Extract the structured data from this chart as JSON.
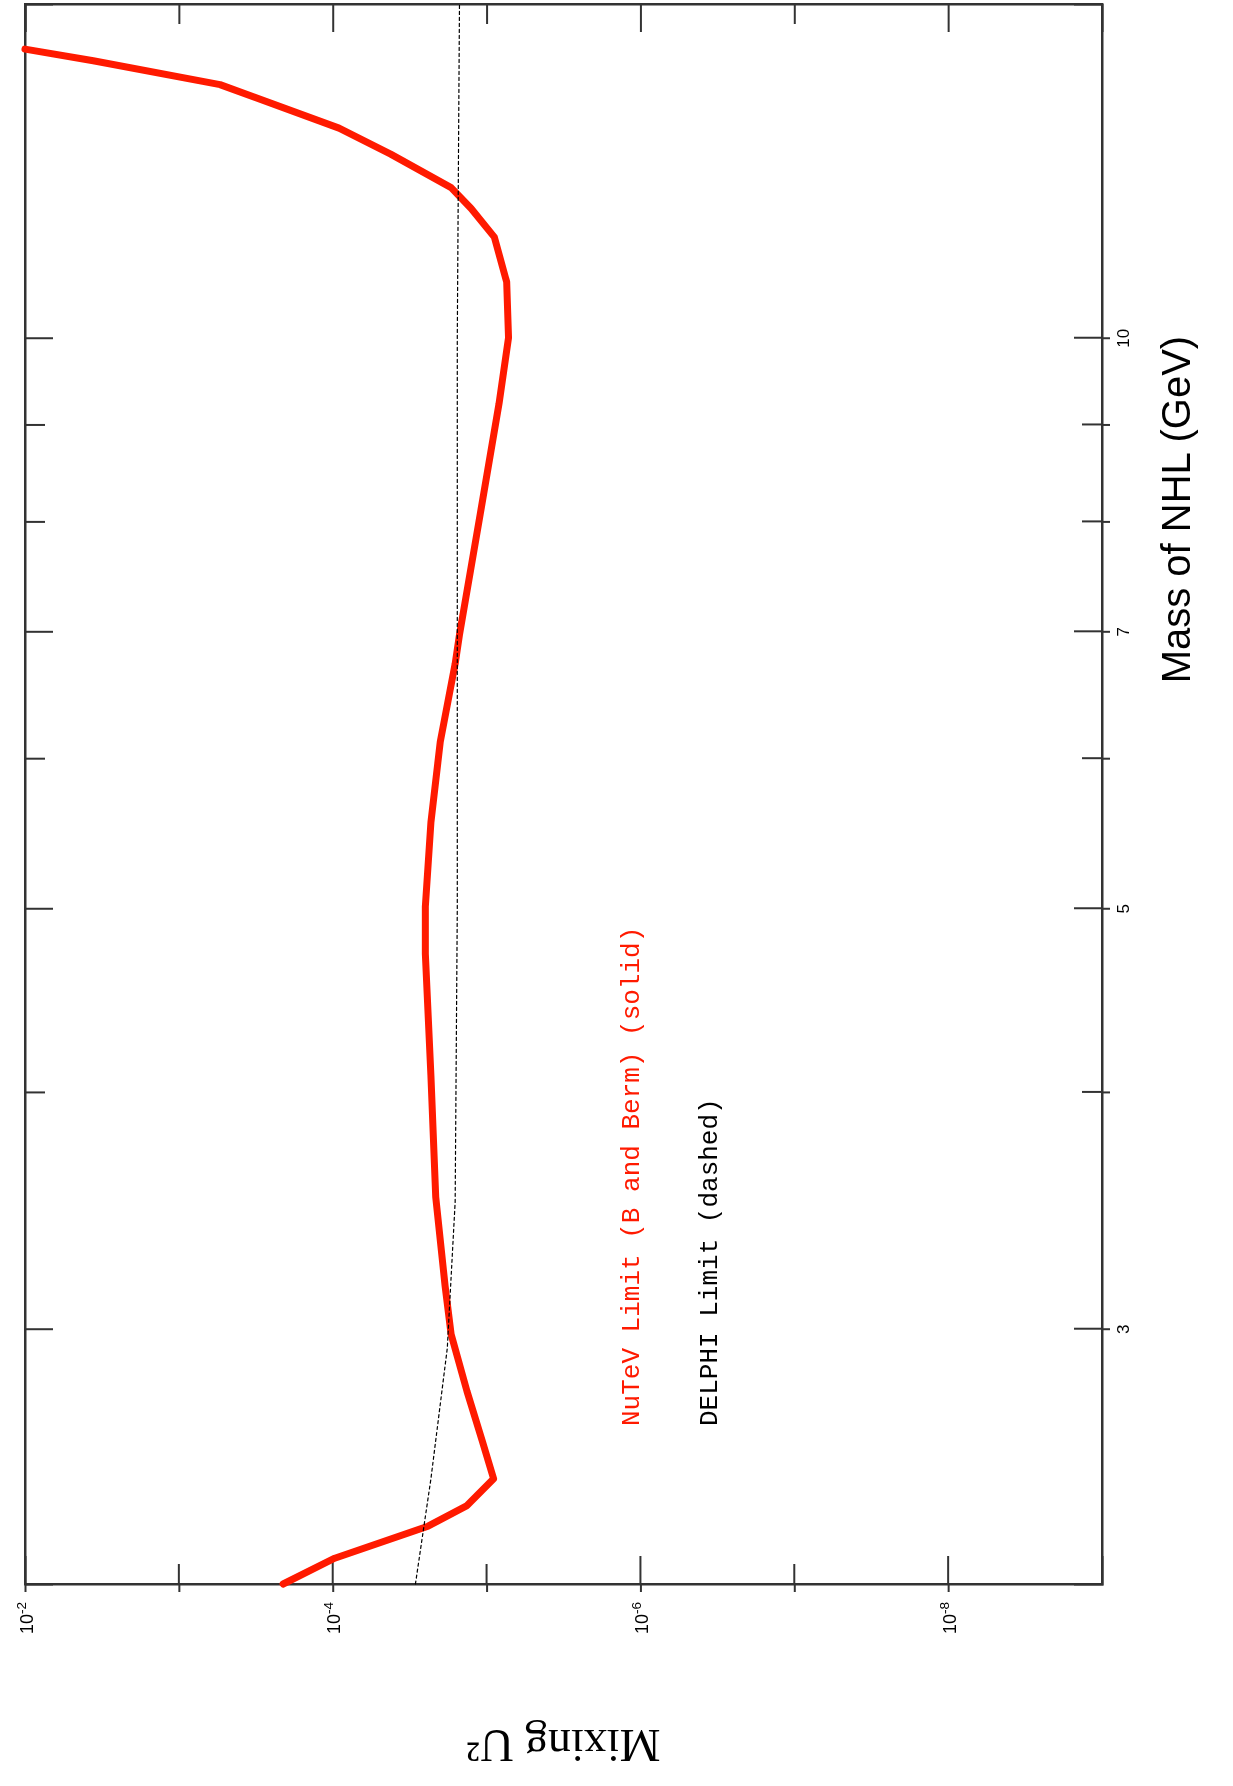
{
  "chart_data": {
    "type": "line",
    "xlabel": "Mixing  U²",
    "ylabel": "Mass of NHL (GeV)",
    "log": "xy",
    "ylim": [
      2.2,
      15
    ],
    "yticks": [
      3,
      {
        "value": 4,
        "label": null
      },
      5,
      {
        "value": 6,
        "label": null
      },
      7,
      {
        "value": 8,
        "label": null
      },
      {
        "value": 9,
        "label": null
      },
      10
    ],
    "xlim": [
      0.01,
      1e-09
    ],
    "xticks": [
      {
        "value": 0.01,
        "label": "10$^{-2}$"
      },
      {
        "value": 0.001,
        "label": null
      },
      {
        "value": 0.0001,
        "label": "10$^{-4}$"
      },
      {
        "value": 1e-05,
        "label": null
      },
      {
        "value": 1e-06,
        "label": "10$^{-6}$"
      },
      {
        "value": 1e-07,
        "label": null
      },
      {
        "value": 1e-08,
        "label": "10$^{-8}$"
      }
    ],
    "legend": "bottom",
    "marker": "none",
    "series": [
      {
        "name": "NuTeV Limit (B and Berm) (solid)",
        "color": "#ff1a00",
        "line_style": "solid",
        "values": [
          2.2,
          2.27,
          2.36,
          2.42,
          2.5,
          2.62,
          2.78,
          2.98,
          3.16,
          3.52,
          4.08,
          4.73,
          5.01,
          5.55,
          6.12,
          6.73,
          6.97,
          8.07,
          9.23,
          10.0,
          10.7,
          11.3,
          11.7,
          12.0,
          12.5,
          12.9,
          13.6,
          14.0,
          14.2
        ],
        "x": [
          0.00021,
          9.7e-05,
          2.4e-05,
          1.34e-05,
          9e-06,
          1.07e-05,
          1.34e-05,
          1.7e-05,
          1.86e-05,
          2.14e-05,
          2.3e-05,
          2.5e-05,
          2.5e-05,
          2.3e-05,
          2e-05,
          1.6e-05,
          1.5e-05,
          1.1e-05,
          8.3e-06,
          7.2e-06,
          7.4e-06,
          8.9e-06,
          1.26e-05,
          1.7e-05,
          4.2e-05,
          9.1e-05,
          0.00054,
          0.0036,
          0.01
        ]
      },
      {
        "name": "DELPHI Limit (dashed)",
        "color": "#000000",
        "line_style": "dashed",
        "values": [
          2.2,
          2.5,
          2.93,
          3.5,
          5,
          10,
          15
        ],
        "x": [
          2.9e-05,
          2.3e-05,
          1.8e-05,
          1.6e-05,
          1.55e-05,
          1.55e-05,
          1.5e-05
        ]
      }
    ]
  }
}
